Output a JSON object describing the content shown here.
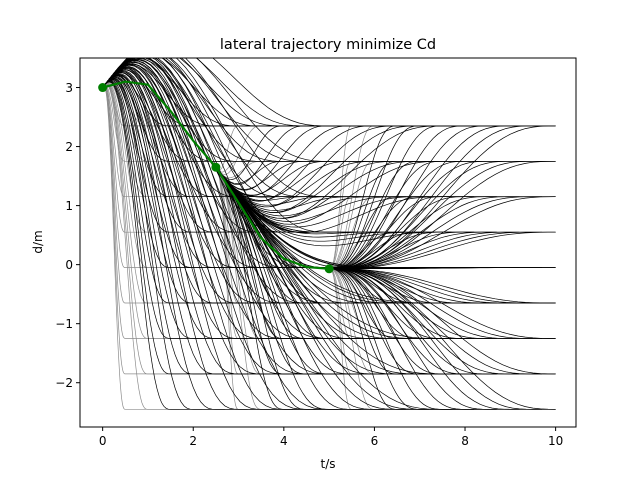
{
  "chart_data": {
    "type": "line",
    "title": "lateral trajectory minimize Cd",
    "xlabel": "t/s",
    "ylabel": "d/m",
    "xlim": [
      -0.5,
      10.45
    ],
    "ylim": [
      -2.75,
      3.5
    ],
    "xticks": [
      0,
      2,
      4,
      6,
      8,
      10
    ],
    "yticks": [
      -2,
      -1,
      0,
      1,
      2,
      3
    ],
    "grid": false,
    "candidate_targets_d": [
      2.35,
      1.75,
      1.15,
      0.55,
      -0.05,
      -0.65,
      -1.25,
      -1.85,
      -2.45
    ],
    "candidate_durations_s": [
      0.5,
      1.0,
      1.5,
      2.0,
      2.5,
      3.0,
      3.5,
      4.0,
      4.5,
      5.0
    ],
    "candidate_stage_starts": [
      {
        "t": 0.0,
        "d": 3.0,
        "dd": 1.0
      },
      {
        "t": 2.5,
        "d": 1.65,
        "dd": -1.0
      },
      {
        "t": 5.0,
        "d": -0.07,
        "dd": 0.0
      }
    ],
    "candidate_color": "#000000",
    "rejected_color": "#8c8c8c",
    "series": [
      {
        "color": "#007f00",
        "x": [
          0.0,
          0.5,
          1.0,
          1.5,
          2.0,
          2.5,
          3.0,
          3.5,
          4.0,
          4.5,
          5.0
        ],
        "y": [
          3.0,
          3.1,
          3.05,
          2.6,
          2.1,
          1.65,
          1.05,
          0.45,
          0.1,
          -0.04,
          -0.07
        ]
      }
    ],
    "markers": {
      "color": "#007f00",
      "x": [
        0.0,
        2.5,
        5.0
      ],
      "y": [
        3.0,
        1.65,
        -0.07
      ]
    }
  }
}
